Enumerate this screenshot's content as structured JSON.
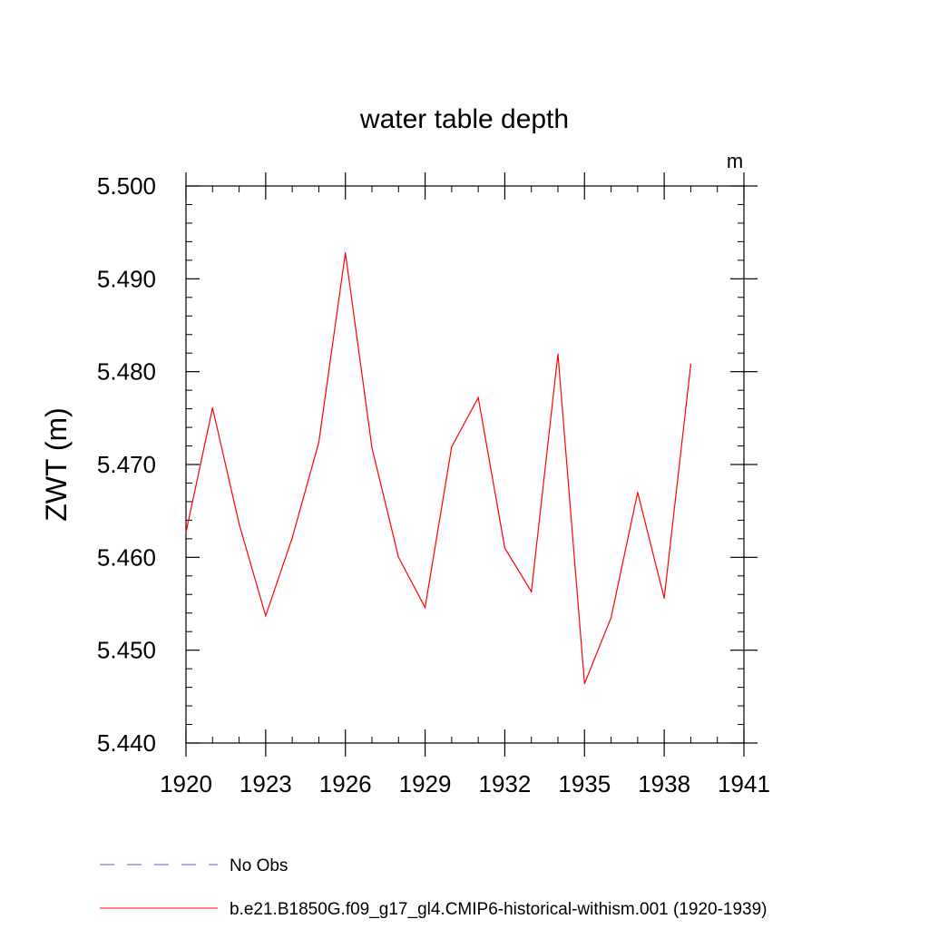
{
  "chart_data": {
    "type": "line",
    "title": "water table depth",
    "units": "m",
    "ylabel": "ZWT  (m)",
    "xlabel": "",
    "xlim": [
      1920,
      1941
    ],
    "ylim": [
      5.44,
      5.5
    ],
    "x_ticks": [
      {
        "value": 1920,
        "label": "1920"
      },
      {
        "value": 1923,
        "label": "1923"
      },
      {
        "value": 1926,
        "label": "1926"
      },
      {
        "value": 1929,
        "label": "1929"
      },
      {
        "value": 1932,
        "label": "1932"
      },
      {
        "value": 1935,
        "label": "1935"
      },
      {
        "value": 1938,
        "label": "1938"
      },
      {
        "value": 1941,
        "label": "1941"
      }
    ],
    "y_ticks": [
      {
        "value": 5.44,
        "label": "5.440"
      },
      {
        "value": 5.45,
        "label": "5.450"
      },
      {
        "value": 5.46,
        "label": "5.460"
      },
      {
        "value": 5.47,
        "label": "5.470"
      },
      {
        "value": 5.48,
        "label": "5.480"
      },
      {
        "value": 5.49,
        "label": "5.490"
      },
      {
        "value": 5.5,
        "label": "5.500"
      }
    ],
    "grid": false,
    "legend_position": "bottom",
    "series": [
      {
        "name": "b.e21.B1850G.f09_g17_gl4.CMIP6-historical-withism.001 (1920-1939)",
        "color": "#ff0000",
        "style": "solid",
        "x": [
          1920,
          1921,
          1922,
          1923,
          1924,
          1925,
          1926,
          1927,
          1928,
          1929,
          1930,
          1931,
          1932,
          1933,
          1934,
          1935,
          1936,
          1937,
          1938,
          1939
        ],
        "values": [
          5.4627,
          5.4761,
          5.4636,
          5.4537,
          5.4621,
          5.4724,
          5.4928,
          5.4718,
          5.46,
          5.4546,
          5.4719,
          5.4772,
          5.461,
          5.4563,
          5.4819,
          5.4464,
          5.4535,
          5.467,
          5.4556,
          5.4808
        ]
      }
    ],
    "legend": [
      {
        "label": "No Obs",
        "color": "#6a5acd",
        "style": "dashed"
      },
      {
        "label": "b.e21.B1850G.f09_g17_gl4.CMIP6-historical-withism.001 (1920-1939)",
        "color": "#ff0000",
        "style": "solid"
      }
    ]
  }
}
